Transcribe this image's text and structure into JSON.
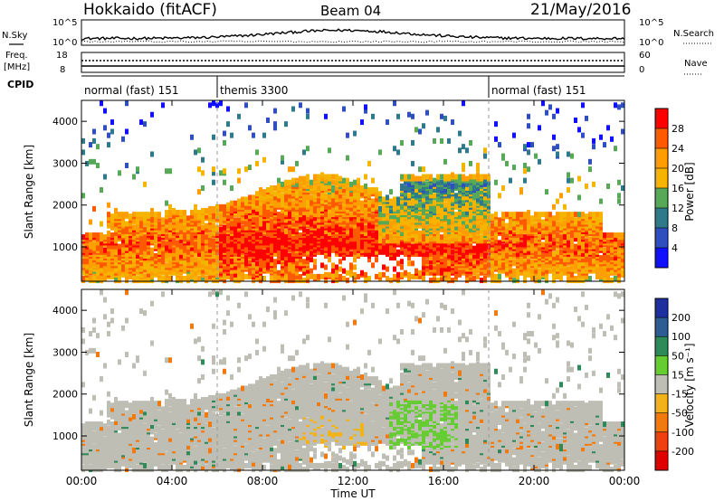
{
  "header": {
    "title": "Hokkaido (fitACF)",
    "beam": "Beam 04",
    "date": "21/May/2016"
  },
  "labels": {
    "nsky": "N.Sky",
    "nsearch": "N.Search",
    "freq_line1": "Freq.",
    "freq_line2": "[MHz]",
    "nave": "Nave",
    "cpid": "CPID",
    "nsky_ticks": [
      "10^5",
      "10^0"
    ],
    "nsearch_ticks": [
      "10^5",
      "10^0"
    ],
    "freq_ticks": [
      "18",
      "8"
    ],
    "nave_ticks": [
      "60",
      "0"
    ]
  },
  "cpid_segments": [
    {
      "label": "normal (fast) 151",
      "start_h": 0,
      "end_h": 6
    },
    {
      "label": "themis 3300",
      "start_h": 6,
      "end_h": 18
    },
    {
      "label": "normal (fast) 151",
      "start_h": 18,
      "end_h": 24
    }
  ],
  "x_axis": {
    "label": "Time UT",
    "range_h": [
      0,
      24
    ],
    "ticks": [
      "00:00",
      "04:00",
      "08:00",
      "12:00",
      "16:00",
      "20:00",
      "00:00"
    ],
    "tick_hours": [
      0,
      4,
      8,
      12,
      16,
      20,
      24
    ]
  },
  "chart_data": [
    {
      "type": "heatmap",
      "name": "power",
      "ylabel": "Slant Range [km]",
      "ylim": [
        180,
        4500
      ],
      "yticks": [
        1000,
        2000,
        3000,
        4000
      ],
      "colorbar": {
        "label": "Power [dB]",
        "tick_labels": [
          "28",
          "24",
          "20",
          "16",
          "12",
          "8",
          "4"
        ],
        "levels": [
          {
            "min": 28,
            "color": "#ff0000"
          },
          {
            "min": 24,
            "color": "#ff5a00"
          },
          {
            "min": 20,
            "color": "#ff9e00"
          },
          {
            "min": 16,
            "color": "#f4b400"
          },
          {
            "min": 12,
            "color": "#57a857"
          },
          {
            "min": 8,
            "color": "#2e7a8a"
          },
          {
            "min": 4,
            "color": "#2f4fbf"
          },
          {
            "min": 0,
            "color": "#1010ff"
          }
        ]
      },
      "dashed_hours": [
        6,
        18
      ]
    },
    {
      "type": "heatmap",
      "name": "velocity",
      "ylabel": "Slant Range [km]",
      "ylim": [
        180,
        4500
      ],
      "yticks": [
        1000,
        2000,
        3000,
        4000
      ],
      "colorbar": {
        "label": "Velocity [m s⁻¹]",
        "tick_labels": [
          "200",
          "100",
          "50",
          "15",
          "-15",
          "-50",
          "-100",
          "-200"
        ],
        "levels": [
          {
            "name": ">200",
            "color": "#1e2f9e"
          },
          {
            "name": "100–200",
            "color": "#2e5d94"
          },
          {
            "name": "50–100",
            "color": "#2f8a5a"
          },
          {
            "name": "15–50",
            "color": "#66cc33"
          },
          {
            "name": "±15",
            "color": "#bebeb4"
          },
          {
            "name": "-15–-50",
            "color": "#f2b31a"
          },
          {
            "name": "-50–-100",
            "color": "#f07a10"
          },
          {
            "name": "-100–-200",
            "color": "#ee4010"
          },
          {
            "name": "<-200",
            "color": "#e00000"
          }
        ]
      },
      "dashed_hours": [
        6,
        18
      ]
    }
  ]
}
